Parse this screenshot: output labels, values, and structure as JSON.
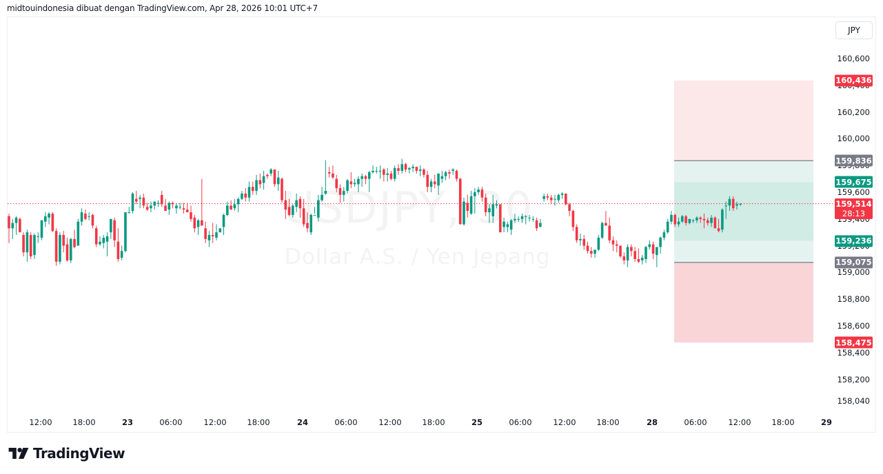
{
  "header": {
    "attribution": "midtouindonesia dibuat dengan TradingView.com, Apr 28, 2026 10:01 UTC+7"
  },
  "watermark": {
    "symbol": "USDJPY, 30",
    "description": "Dollar A.S. / Yen Jepang"
  },
  "currency_button": {
    "label": "JPY"
  },
  "footer": {
    "brand": "TradingView"
  },
  "colors": {
    "up": "#089981",
    "down": "#f23645",
    "neutral_label": "#787b86",
    "stop_zone": "#fde8e9",
    "stop_zone_lower": "#f9d5d8",
    "target_zone": "#e4f3f0",
    "target_zone_inner": "#d1ebe5",
    "current_price_line": "#f23645"
  },
  "chart_data": {
    "type": "candlestick",
    "title": "USDJPY, 30",
    "subtitle": "Dollar A.S. / Yen Jepang",
    "ylabel": "JPY",
    "ylim": [
      157.96,
      160.82
    ],
    "grid": false,
    "y_ticks": [
      "160,600",
      "160,400",
      "160,200",
      "160,000",
      "159,800",
      "159,600",
      "159,400",
      "159,200",
      "159,000",
      "158,800",
      "158,600",
      "158,400",
      "158,200",
      "158,040"
    ],
    "y_tick_values": [
      160.6,
      160.4,
      160.2,
      160.0,
      159.8,
      159.6,
      159.4,
      159.2,
      159.0,
      158.8,
      158.6,
      158.4,
      158.2,
      158.04
    ],
    "x_ticks": [
      {
        "label": "12:00",
        "x": 59,
        "bold": false
      },
      {
        "label": "18:00",
        "x": 122,
        "bold": false
      },
      {
        "label": "23",
        "x": 185,
        "bold": true
      },
      {
        "label": "06:00",
        "x": 248,
        "bold": false
      },
      {
        "label": "12:00",
        "x": 312,
        "bold": false
      },
      {
        "label": "18:00",
        "x": 375,
        "bold": false
      },
      {
        "label": "24",
        "x": 439,
        "bold": true
      },
      {
        "label": "06:00",
        "x": 502,
        "bold": false
      },
      {
        "label": "12:00",
        "x": 566,
        "bold": false
      },
      {
        "label": "18:00",
        "x": 629,
        "bold": false
      },
      {
        "label": "25",
        "x": 692,
        "bold": true
      },
      {
        "label": "06:00",
        "x": 755,
        "bold": false
      },
      {
        "label": "12:00",
        "x": 819,
        "bold": false
      },
      {
        "label": "18:00",
        "x": 882,
        "bold": false
      },
      {
        "label": "28",
        "x": 946,
        "bold": true
      },
      {
        "label": "06:00",
        "x": 1009,
        "bold": false
      },
      {
        "label": "12:00",
        "x": 1073,
        "bold": false
      },
      {
        "label": "18:00",
        "x": 1136,
        "bold": false
      },
      {
        "label": "29",
        "x": 1199,
        "bold": true
      }
    ],
    "price_labels": [
      {
        "value": "160,436",
        "price": 160.436,
        "kind": "down"
      },
      {
        "value": "159,836",
        "price": 159.836,
        "kind": "neutral"
      },
      {
        "value": "159,675",
        "price": 159.675,
        "kind": "up"
      },
      {
        "value": "159,236",
        "price": 159.236,
        "kind": "up"
      },
      {
        "value": "159,075",
        "price": 159.075,
        "kind": "neutral"
      },
      {
        "value": "158,475",
        "price": 158.475,
        "kind": "down"
      }
    ],
    "current_price": {
      "value": "159,514",
      "price": 159.514,
      "countdown": "28:13"
    },
    "position_tool": {
      "x_start": 978,
      "x_end": 1180,
      "stop_top": 160.436,
      "upper_entry": 159.836,
      "upper_target": 159.675,
      "lower_target": 159.236,
      "lower_entry": 159.075,
      "stop_bottom": 158.475
    },
    "candle_spacing_px": 5.28,
    "first_candle_x": 13,
    "candles": [
      [
        159.42,
        159.44,
        159.22,
        159.33
      ],
      [
        159.33,
        159.4,
        159.25,
        159.37
      ],
      [
        159.37,
        159.42,
        159.28,
        159.41
      ],
      [
        159.4,
        159.41,
        159.31,
        159.3
      ],
      [
        159.28,
        159.3,
        159.12,
        159.15
      ],
      [
        159.15,
        159.32,
        159.08,
        159.3
      ],
      [
        159.28,
        159.3,
        159.1,
        159.12
      ],
      [
        159.13,
        159.29,
        159.1,
        159.28
      ],
      [
        159.27,
        159.3,
        159.22,
        159.27
      ],
      [
        159.26,
        159.39,
        159.24,
        159.39
      ],
      [
        159.38,
        159.45,
        159.34,
        159.42
      ],
      [
        159.41,
        159.45,
        159.36,
        159.44
      ],
      [
        159.44,
        159.45,
        159.3,
        159.31
      ],
      [
        159.31,
        159.33,
        159.05,
        159.08
      ],
      [
        159.08,
        159.3,
        159.06,
        159.28
      ],
      [
        159.28,
        159.31,
        159.15,
        159.2
      ],
      [
        159.21,
        159.26,
        159.08,
        159.09
      ],
      [
        159.09,
        159.26,
        159.07,
        159.25
      ],
      [
        159.25,
        159.32,
        159.18,
        159.19
      ],
      [
        159.2,
        159.4,
        159.2,
        159.38
      ],
      [
        159.38,
        159.48,
        159.35,
        159.45
      ],
      [
        159.44,
        159.47,
        159.39,
        159.4
      ],
      [
        159.42,
        159.45,
        159.39,
        159.42
      ],
      [
        159.43,
        159.44,
        159.33,
        159.35
      ],
      [
        159.33,
        159.35,
        159.19,
        159.21
      ],
      [
        159.21,
        159.27,
        159.2,
        159.23
      ],
      [
        159.22,
        159.28,
        159.18,
        159.26
      ],
      [
        159.23,
        159.3,
        159.12,
        159.27
      ],
      [
        159.3,
        159.4,
        159.25,
        159.4
      ],
      [
        159.39,
        159.41,
        159.19,
        159.24
      ],
      [
        159.23,
        159.33,
        159.08,
        159.1
      ],
      [
        159.11,
        159.2,
        159.09,
        159.16
      ],
      [
        159.16,
        159.42,
        159.15,
        159.45
      ],
      [
        159.45,
        159.49,
        159.44,
        159.45
      ],
      [
        159.46,
        159.6,
        159.44,
        159.59
      ],
      [
        159.55,
        159.61,
        159.51,
        159.53
      ],
      [
        159.55,
        159.58,
        159.48,
        159.56
      ],
      [
        159.56,
        159.59,
        159.48,
        159.5
      ],
      [
        159.49,
        159.52,
        159.46,
        159.47
      ],
      [
        159.48,
        159.53,
        159.45,
        159.5
      ],
      [
        159.5,
        159.53,
        159.47,
        159.53
      ],
      [
        159.52,
        159.54,
        159.49,
        159.52
      ],
      [
        159.58,
        159.61,
        159.49,
        159.51
      ],
      [
        159.5,
        159.55,
        159.46,
        159.46
      ],
      [
        159.47,
        159.53,
        159.43,
        159.52
      ],
      [
        159.52,
        159.53,
        159.48,
        159.51
      ],
      [
        159.48,
        159.52,
        159.44,
        159.5
      ],
      [
        159.49,
        159.52,
        159.47,
        159.49
      ],
      [
        159.48,
        159.52,
        159.44,
        159.47
      ],
      [
        159.47,
        159.52,
        159.45,
        159.45
      ],
      [
        159.45,
        159.5,
        159.38,
        159.4
      ],
      [
        159.41,
        159.43,
        159.3,
        159.33
      ],
      [
        159.34,
        159.4,
        159.28,
        159.39
      ],
      [
        159.39,
        159.7,
        159.38,
        159.35
      ],
      [
        159.33,
        159.38,
        159.22,
        159.25
      ],
      [
        159.24,
        159.31,
        159.19,
        159.28
      ],
      [
        159.28,
        159.37,
        159.22,
        159.27
      ],
      [
        159.26,
        159.36,
        159.24,
        159.3
      ],
      [
        159.3,
        159.33,
        159.3,
        159.33
      ],
      [
        159.34,
        159.44,
        159.28,
        159.43
      ],
      [
        159.43,
        159.53,
        159.42,
        159.5
      ],
      [
        159.5,
        159.54,
        159.47,
        159.47
      ],
      [
        159.48,
        159.55,
        159.46,
        159.51
      ],
      [
        159.51,
        159.56,
        159.45,
        159.55
      ],
      [
        159.55,
        159.61,
        159.54,
        159.59
      ],
      [
        159.59,
        159.63,
        159.53,
        159.56
      ],
      [
        159.56,
        159.68,
        159.53,
        159.64
      ],
      [
        159.64,
        159.68,
        159.58,
        159.61
      ],
      [
        159.61,
        159.73,
        159.58,
        159.69
      ],
      [
        159.69,
        159.74,
        159.63,
        159.66
      ],
      [
        159.67,
        159.76,
        159.62,
        159.72
      ],
      [
        159.73,
        159.74,
        159.7,
        159.72
      ],
      [
        159.74,
        159.78,
        159.72,
        159.77
      ],
      [
        159.77,
        159.77,
        159.64,
        159.66
      ],
      [
        159.66,
        159.76,
        159.61,
        159.71
      ],
      [
        159.7,
        159.71,
        159.52,
        159.54
      ],
      [
        159.54,
        159.61,
        159.4,
        159.47
      ],
      [
        159.49,
        159.55,
        159.42,
        159.43
      ],
      [
        159.43,
        159.51,
        159.41,
        159.5
      ],
      [
        159.49,
        159.59,
        159.45,
        159.54
      ],
      [
        159.55,
        159.57,
        159.41,
        159.48
      ],
      [
        159.48,
        159.55,
        159.34,
        159.36
      ],
      [
        159.37,
        159.45,
        159.3,
        159.33
      ],
      [
        159.3,
        159.44,
        159.28,
        159.43
      ],
      [
        159.43,
        159.49,
        159.44,
        159.43
      ],
      [
        159.41,
        159.58,
        159.38,
        159.54
      ],
      [
        159.54,
        159.64,
        159.53,
        159.58
      ],
      [
        159.59,
        159.84,
        159.58,
        159.61
      ],
      [
        159.75,
        159.79,
        159.71,
        159.74
      ],
      [
        159.74,
        159.8,
        159.7,
        159.71
      ],
      [
        159.7,
        159.73,
        159.6,
        159.63
      ],
      [
        159.63,
        159.66,
        159.52,
        159.58
      ],
      [
        159.58,
        159.64,
        159.53,
        159.61
      ],
      [
        159.61,
        159.7,
        159.59,
        159.69
      ],
      [
        159.68,
        159.75,
        159.63,
        159.66
      ],
      [
        159.66,
        159.7,
        159.64,
        159.67
      ],
      [
        159.66,
        159.72,
        159.6,
        159.7
      ],
      [
        159.7,
        159.74,
        159.64,
        159.72
      ],
      [
        159.72,
        159.73,
        159.66,
        159.7
      ],
      [
        159.7,
        159.76,
        159.6,
        159.75
      ],
      [
        159.75,
        159.8,
        159.74,
        159.76
      ],
      [
        159.76,
        159.79,
        159.74,
        159.76
      ],
      [
        159.76,
        159.8,
        159.7,
        159.76
      ],
      [
        159.77,
        159.78,
        159.68,
        159.73
      ],
      [
        159.73,
        159.78,
        159.68,
        159.74
      ],
      [
        159.74,
        159.76,
        159.69,
        159.7
      ],
      [
        159.7,
        159.8,
        159.68,
        159.78
      ],
      [
        159.78,
        159.81,
        159.73,
        159.76
      ],
      [
        159.76,
        159.85,
        159.74,
        159.81
      ],
      [
        159.81,
        159.82,
        159.75,
        159.77
      ],
      [
        159.77,
        159.79,
        159.74,
        159.78
      ],
      [
        159.78,
        159.81,
        159.75,
        159.79
      ],
      [
        159.79,
        159.79,
        159.74,
        159.76
      ],
      [
        159.76,
        159.8,
        159.72,
        159.77
      ],
      [
        159.77,
        159.78,
        159.71,
        159.73
      ],
      [
        159.73,
        159.76,
        159.6,
        159.64
      ],
      [
        159.64,
        159.7,
        159.6,
        159.68
      ],
      [
        159.68,
        159.73,
        159.63,
        159.66
      ],
      [
        159.65,
        159.74,
        159.58,
        159.74
      ],
      [
        159.7,
        159.76,
        159.67,
        159.72
      ],
      [
        159.72,
        159.76,
        159.69,
        159.75
      ],
      [
        159.75,
        159.77,
        159.7,
        159.74
      ],
      [
        159.76,
        159.78,
        159.73,
        159.77
      ],
      [
        159.76,
        159.77,
        159.68,
        159.7
      ],
      [
        159.7,
        159.71,
        159.44,
        159.36
      ],
      [
        159.36,
        159.56,
        159.35,
        159.53
      ],
      [
        159.52,
        159.58,
        159.41,
        159.46
      ],
      [
        159.44,
        159.61,
        159.43,
        159.57
      ],
      [
        159.57,
        159.63,
        159.44,
        159.6
      ],
      [
        159.6,
        159.64,
        159.58,
        159.62
      ],
      [
        159.62,
        159.64,
        159.53,
        159.56
      ],
      [
        159.56,
        159.59,
        159.42,
        159.45
      ],
      [
        159.45,
        159.51,
        159.37,
        159.48
      ],
      [
        159.42,
        159.58,
        159.37,
        159.51
      ],
      [
        159.5,
        159.54,
        159.48,
        159.51
      ],
      [
        159.51,
        159.51,
        159.42,
        159.3
      ],
      [
        159.34,
        159.41,
        159.3,
        159.38
      ],
      [
        159.34,
        159.38,
        159.3,
        159.36
      ],
      [
        159.32,
        159.4,
        159.28,
        159.39
      ],
      [
        159.39,
        159.44,
        159.37,
        159.4
      ],
      [
        159.4,
        159.42,
        159.38,
        159.4
      ],
      [
        159.4,
        159.44,
        159.37,
        159.42
      ],
      [
        159.42,
        159.43,
        159.36,
        159.42
      ],
      [
        159.41,
        159.43,
        159.38,
        159.41
      ],
      [
        159.4,
        159.42,
        159.38,
        159.4
      ],
      [
        159.39,
        159.41,
        159.31,
        159.33
      ],
      [
        159.34,
        159.4,
        159.34,
        159.37
      ],
      [
        159.55,
        159.59,
        159.53,
        159.57
      ],
      [
        159.57,
        159.59,
        159.54,
        159.56
      ],
      [
        159.56,
        159.58,
        159.51,
        159.54
      ],
      [
        159.55,
        159.58,
        159.5,
        159.55
      ],
      [
        159.54,
        159.59,
        159.52,
        159.58
      ],
      [
        159.58,
        159.6,
        159.55,
        159.59
      ],
      [
        159.59,
        159.59,
        159.5,
        159.51
      ],
      [
        159.51,
        159.52,
        159.42,
        159.46
      ],
      [
        159.46,
        159.47,
        159.31,
        159.34
      ],
      [
        159.34,
        159.36,
        159.22,
        159.24
      ],
      [
        159.24,
        159.29,
        159.2,
        159.25
      ],
      [
        159.25,
        159.28,
        159.17,
        159.2
      ],
      [
        159.2,
        159.23,
        159.14,
        159.16
      ],
      [
        159.16,
        159.19,
        159.11,
        159.14
      ],
      [
        159.14,
        159.17,
        159.11,
        159.17
      ],
      [
        159.17,
        159.28,
        159.16,
        159.26
      ],
      [
        159.26,
        159.38,
        159.25,
        159.37
      ],
      [
        159.37,
        159.46,
        159.35,
        159.35
      ],
      [
        159.35,
        159.41,
        159.22,
        159.24
      ],
      [
        159.24,
        159.27,
        159.16,
        159.21
      ],
      [
        159.21,
        159.24,
        159.15,
        159.2
      ],
      [
        159.2,
        159.2,
        159.11,
        159.12
      ],
      [
        159.12,
        159.15,
        159.06,
        159.09
      ],
      [
        159.09,
        159.21,
        159.04,
        159.19
      ],
      [
        159.19,
        159.21,
        159.12,
        159.16
      ],
      [
        159.16,
        159.19,
        159.08,
        159.1
      ],
      [
        159.1,
        159.18,
        159.07,
        159.08
      ],
      [
        159.09,
        159.13,
        159.06,
        159.11
      ],
      [
        159.1,
        159.2,
        159.07,
        159.19
      ],
      [
        159.19,
        159.24,
        159.17,
        159.21
      ],
      [
        159.21,
        159.23,
        159.1,
        159.14
      ],
      [
        159.13,
        159.16,
        159.04,
        159.19
      ],
      [
        159.19,
        159.27,
        159.14,
        159.26
      ],
      [
        159.26,
        159.32,
        159.24,
        159.3
      ],
      [
        159.3,
        159.4,
        159.29,
        159.38
      ],
      [
        159.38,
        159.46,
        159.36,
        159.43
      ],
      [
        159.43,
        159.44,
        159.34,
        159.36
      ],
      [
        159.36,
        159.41,
        159.34,
        159.38
      ],
      [
        159.38,
        159.43,
        159.37,
        159.42
      ],
      [
        159.42,
        159.43,
        159.35,
        159.37
      ],
      [
        159.37,
        159.4,
        159.36,
        159.4
      ],
      [
        159.39,
        159.4,
        159.37,
        159.39
      ],
      [
        159.39,
        159.42,
        159.37,
        159.41
      ],
      [
        159.41,
        159.42,
        159.37,
        159.4
      ],
      [
        159.4,
        159.44,
        159.33,
        159.39
      ],
      [
        159.39,
        159.41,
        159.35,
        159.37
      ],
      [
        159.37,
        159.43,
        159.34,
        159.41
      ],
      [
        159.41,
        159.42,
        159.34,
        159.33
      ],
      [
        159.33,
        159.4,
        159.3,
        159.31
      ],
      [
        159.32,
        159.48,
        159.3,
        159.47
      ],
      [
        159.5,
        159.53,
        159.4,
        159.5
      ],
      [
        159.5,
        159.57,
        159.46,
        159.55
      ],
      [
        159.55,
        159.57,
        159.46,
        159.48
      ],
      [
        159.5,
        159.53,
        159.47,
        159.51
      ],
      [
        159.51,
        159.52,
        159.5,
        159.51
      ]
    ]
  }
}
